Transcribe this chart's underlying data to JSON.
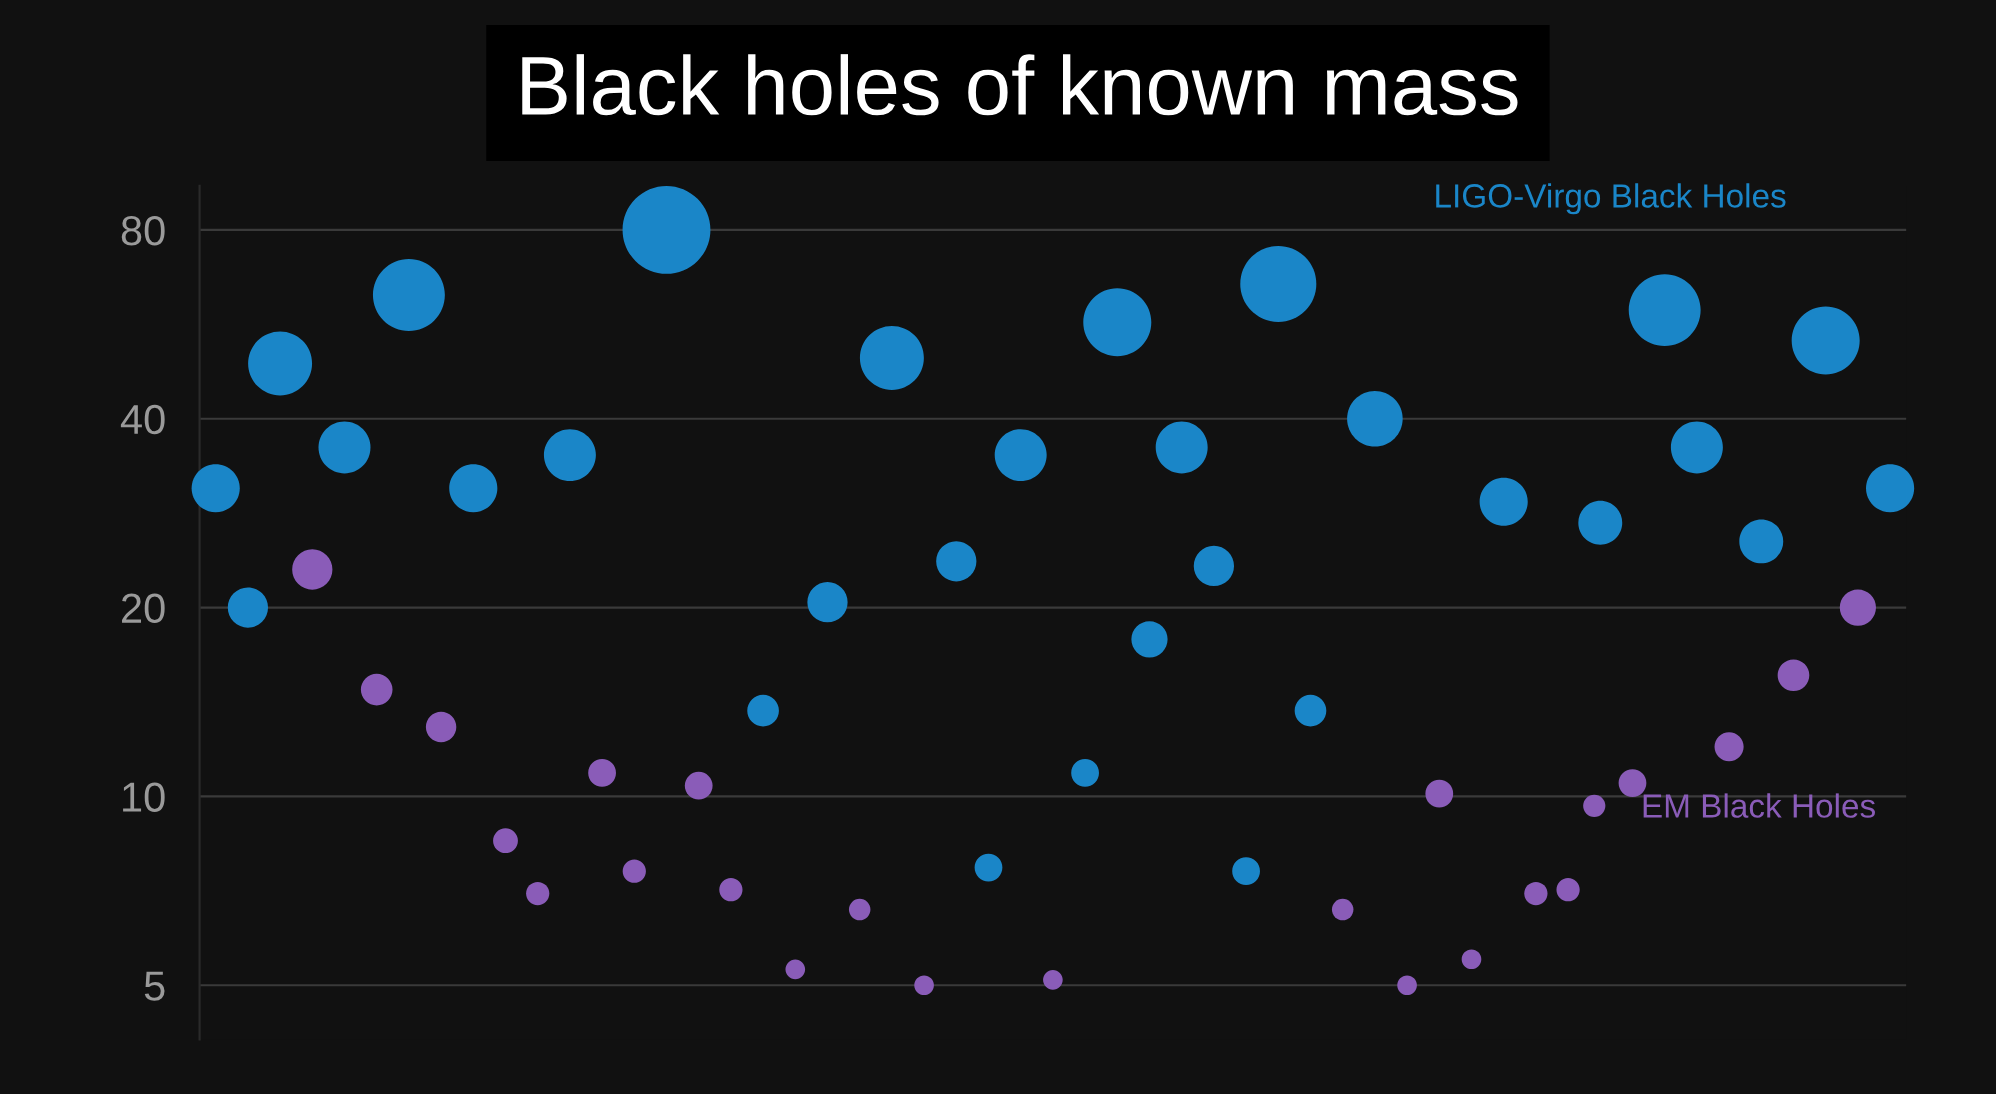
{
  "chart_data": {
    "type": "bubble",
    "title": "Black holes of known mass",
    "categories": [
      null,
      null,
      null,
      null,
      null,
      null,
      null,
      null,
      null,
      null,
      null,
      null,
      null,
      null,
      null,
      null,
      null,
      null,
      null,
      null,
      null,
      null,
      null,
      null,
      null,
      null,
      null,
      null,
      null,
      null,
      null,
      null,
      null,
      null,
      null,
      null,
      null,
      null,
      null,
      null,
      null,
      null,
      null,
      null,
      null,
      null,
      null,
      null,
      null,
      null,
      null,
      null,
      null
    ],
    "series": [
      {
        "name": "LIGO-Virgo Black Holes",
        "color": "#1a86c8",
        "values": [
          31,
          20,
          49,
          null,
          36,
          null,
          63,
          null,
          31,
          null,
          null,
          35,
          null,
          null,
          80,
          null,
          null,
          13.7,
          null,
          20.4,
          null,
          50,
          null,
          23.7,
          7.7,
          35,
          null,
          10.9,
          57,
          17.8,
          36,
          23.3,
          7.6,
          65.6,
          13.7,
          null,
          40,
          null,
          null,
          null,
          29.5,
          null,
          null,
          27.3,
          null,
          59.6,
          36,
          null,
          25.5,
          null,
          53.3,
          null,
          31
        ],
        "sizes": [
          0.3,
          0.21,
          0.53,
          null,
          0.35,
          null,
          0.67,
          null,
          0.3,
          null,
          null,
          0.35,
          null,
          null,
          1,
          null,
          null,
          0.13,
          null,
          0.21,
          null,
          0.53,
          null,
          0.21,
          0.1,
          0.35,
          null,
          0.1,
          0.6,
          0.17,
          0.35,
          0.21,
          0.1,
          0.75,
          0.13,
          null,
          0.4,
          null,
          null,
          null,
          0.3,
          null,
          null,
          0.25,
          null,
          0.67,
          0.35,
          null,
          0.25,
          null,
          0.6,
          null,
          0.3
        ]
      },
      {
        "name": "EM Black Holes",
        "color": "#8a5cb8",
        "values": [
          null,
          null,
          null,
          23,
          null,
          14.8,
          null,
          12.9,
          null,
          8.5,
          7,
          null,
          10.9,
          7.6,
          null,
          10.4,
          7.1,
          null,
          5.3,
          null,
          6.6,
          null,
          5,
          null,
          null,
          null,
          5.1,
          null,
          null,
          null,
          null,
          null,
          null,
          null,
          null,
          6.6,
          null,
          5,
          10.1,
          5.5,
          null,
          7,
          7.1,
          null,
          10.5,
          null,
          null,
          12,
          null,
          15.6,
          null,
          20,
          null
        ],
        "sizes": [
          null,
          null,
          null,
          0.21,
          null,
          0.13,
          null,
          0.12,
          null,
          0.08,
          0.07,
          null,
          0.1,
          0.07,
          null,
          0.1,
          0.07,
          null,
          0.05,
          null,
          0.06,
          null,
          0.05,
          null,
          null,
          null,
          0.05,
          null,
          null,
          null,
          null,
          null,
          null,
          null,
          null,
          0.06,
          null,
          0.05,
          0.1,
          0.05,
          null,
          0.07,
          0.07,
          null,
          0.1,
          null,
          null,
          0.11,
          null,
          0.13,
          null,
          0.17,
          null
        ]
      }
    ],
    "log": "y",
    "ylim": [
      4.1,
      94
    ],
    "yticks": [
      5,
      10,
      20,
      40,
      80
    ],
    "grid": "y",
    "legend": "right",
    "tick_labels": "y"
  }
}
